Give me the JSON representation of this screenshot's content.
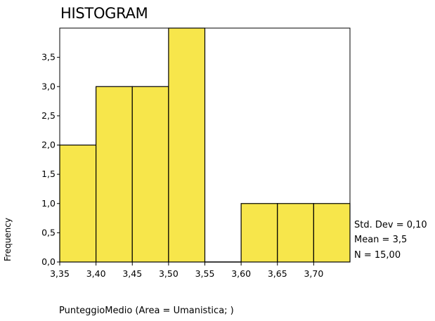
{
  "chart_data": {
    "type": "bar",
    "title": "HISTOGRAM",
    "xlabel": "PunteggioMedio (Area = Umanistica; )",
    "ylabel": "Frequency",
    "bins": [
      {
        "from": 3.35,
        "to": 3.4,
        "value": 2
      },
      {
        "from": 3.4,
        "to": 3.45,
        "value": 3
      },
      {
        "from": 3.45,
        "to": 3.5,
        "value": 3
      },
      {
        "from": 3.5,
        "to": 3.55,
        "value": 4
      },
      {
        "from": 3.55,
        "to": 3.6,
        "value": 0
      },
      {
        "from": 3.6,
        "to": 3.65,
        "value": 1
      },
      {
        "from": 3.65,
        "to": 3.7,
        "value": 1
      },
      {
        "from": 3.7,
        "to": 3.75,
        "value": 1
      }
    ],
    "xlim": [
      3.35,
      3.75
    ],
    "ylim": [
      0,
      4
    ],
    "x_ticks": [
      "3,35",
      "3,40",
      "3,45",
      "3,50",
      "3,55",
      "3,60",
      "3,65",
      "3,70"
    ],
    "x_tick_values": [
      3.35,
      3.4,
      3.45,
      3.5,
      3.55,
      3.6,
      3.65,
      3.7
    ],
    "y_ticks": [
      "0,0",
      "0,5",
      "1,0",
      "1,5",
      "2,0",
      "2,5",
      "3,0",
      "3,5"
    ],
    "y_tick_values": [
      0,
      0.5,
      1,
      1.5,
      2,
      2.5,
      3,
      3.5
    ],
    "bar_color": "#f7e64b",
    "stats": {
      "std_dev": "Std. Dev = 0,10",
      "mean": "Mean = 3,5",
      "n": "N = 15,00"
    }
  }
}
